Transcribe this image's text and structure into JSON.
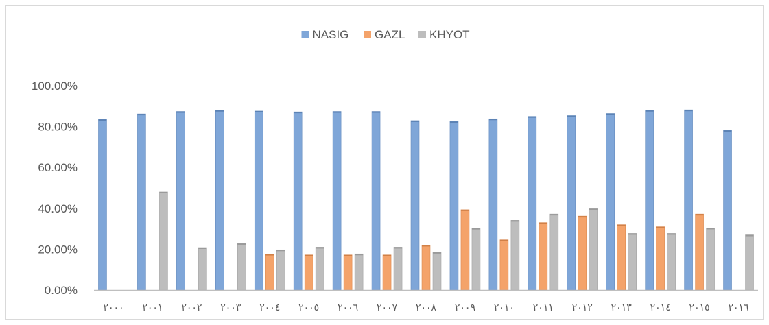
{
  "chart_data": {
    "type": "bar",
    "title": "",
    "xlabel": "",
    "ylabel": "",
    "ylim": [
      0,
      1
    ],
    "yticks": [
      "0.00%",
      "20.00%",
      "40.00%",
      "60.00%",
      "80.00%",
      "100.00%"
    ],
    "categories": [
      "٢٠٠٠",
      "٢٠٠١",
      "٢٠٠٢",
      "٢٠٠٣",
      "٢٠٠٤",
      "٢٠٠٥",
      "٢٠٠٦",
      "٢٠٠٧",
      "٢٠٠٨",
      "٢٠٠٩",
      "٢٠١٠",
      "٢٠١١",
      "٢٠١٢",
      "٢٠١٣",
      "٢٠١٤",
      "٢٠١٥",
      "٢٠١٦"
    ],
    "legend_position": "top",
    "grid": false,
    "series": [
      {
        "name": "NASIG",
        "color": "#7fa6d8",
        "values": [
          0.835,
          0.862,
          0.874,
          0.88,
          0.876,
          0.872,
          0.874,
          0.874,
          0.829,
          0.825,
          0.838,
          0.85,
          0.854,
          0.864,
          0.88,
          0.882,
          0.781
        ]
      },
      {
        "name": "GAZL",
        "color": "#f4a36a",
        "values": [
          0,
          0,
          0,
          0,
          0.176,
          0.172,
          0.172,
          0.172,
          0.22,
          0.393,
          0.246,
          0.33,
          0.362,
          0.32,
          0.31,
          0.372,
          0
        ]
      },
      {
        "name": "KHYOT",
        "color": "#bdbdbd",
        "values": [
          0,
          0.48,
          0.208,
          0.228,
          0.197,
          0.21,
          0.177,
          0.21,
          0.185,
          0.303,
          0.341,
          0.372,
          0.398,
          0.277,
          0.277,
          0.304,
          0.27
        ]
      }
    ]
  }
}
